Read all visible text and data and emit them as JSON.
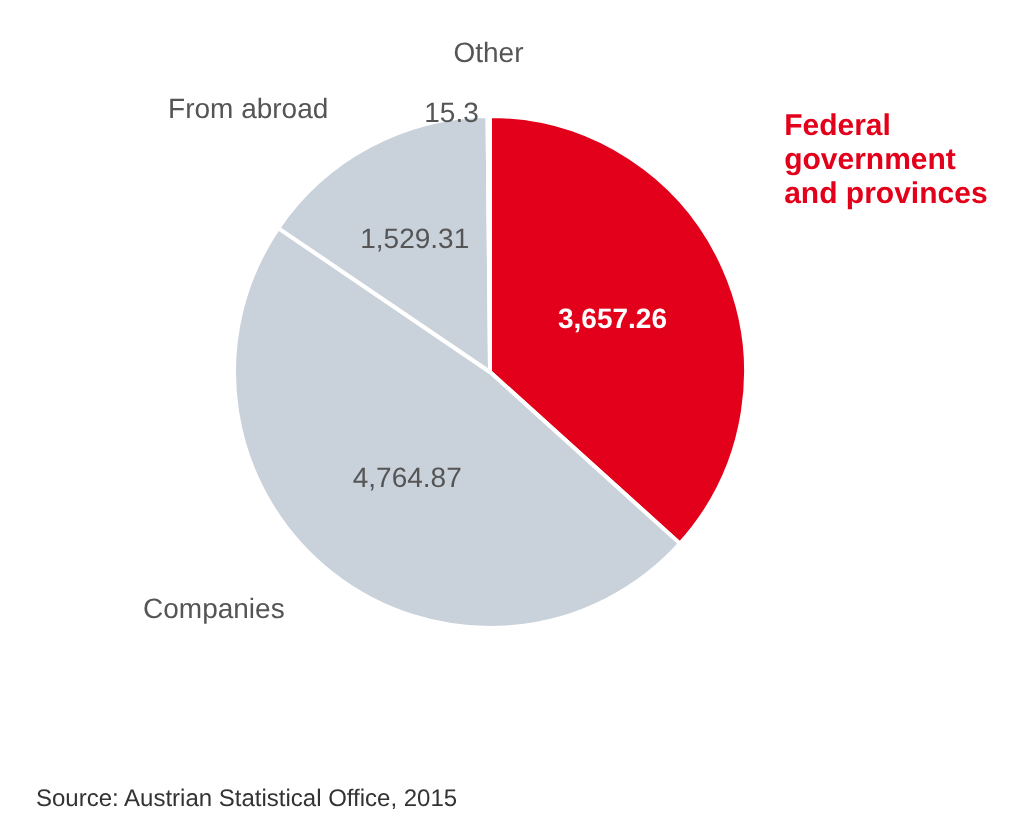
{
  "chart_data": {
    "type": "pie",
    "categories": [
      "Federal government and provinces",
      "Companies",
      "From abroad",
      "Other"
    ],
    "values": [
      3657.26,
      4764.87,
      1529.31,
      15.3
    ],
    "value_labels": [
      "3,657.26",
      "4,764.87",
      "1,529.31",
      "15.3"
    ],
    "colors": [
      "#e2001a",
      "#c9d1da",
      "#c9d1da",
      "#c9d1da"
    ],
    "legend": false,
    "annotations": [
      "Source: Austrian Statistical Office, 2015"
    ]
  }
}
